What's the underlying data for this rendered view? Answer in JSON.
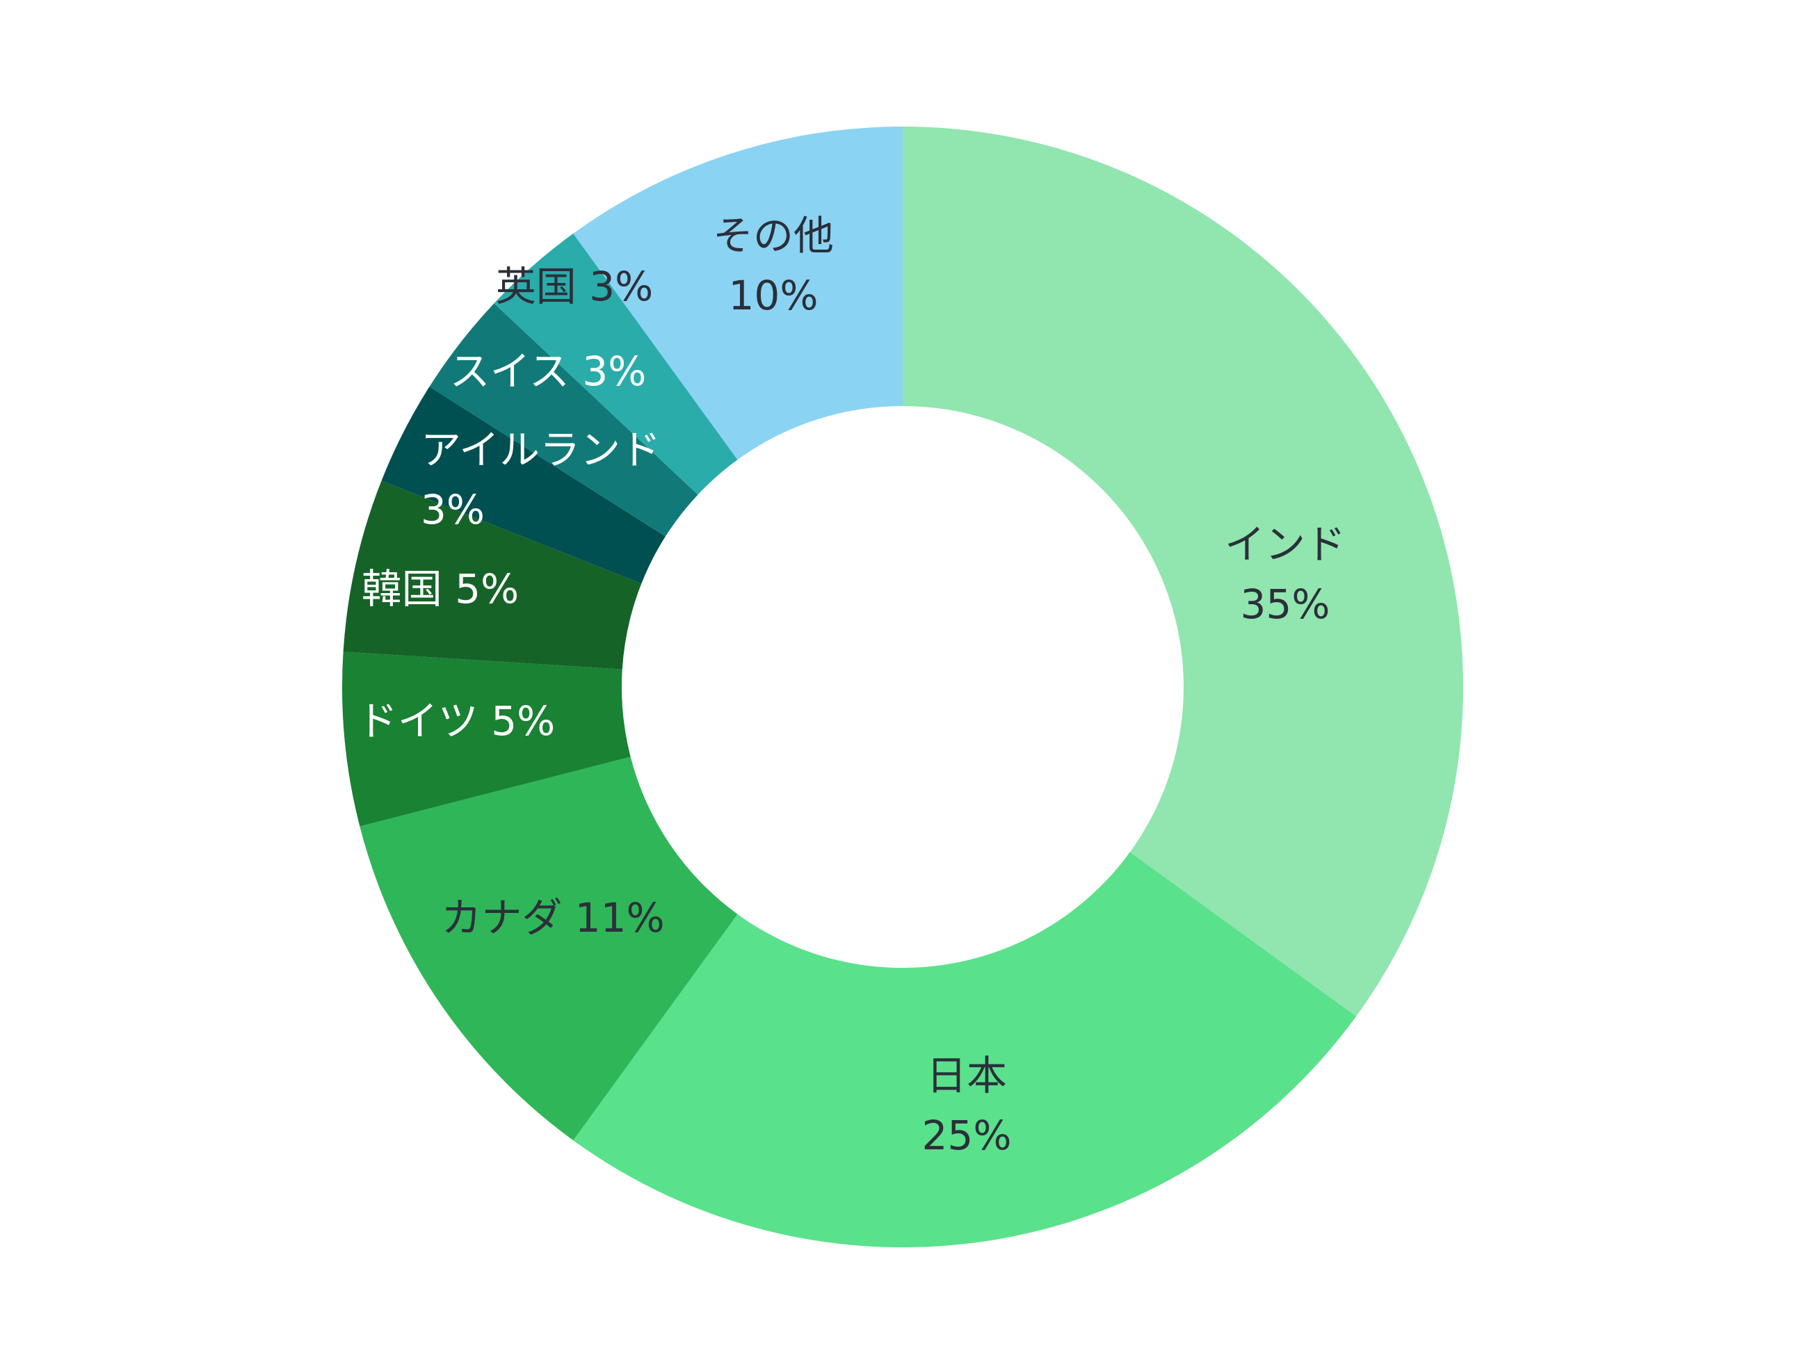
{
  "chart_data": {
    "type": "pie",
    "style": "donut",
    "start_angle_deg": 0,
    "direction": "clockwise",
    "slices": [
      {
        "name": "インド",
        "value": 35,
        "percent_label": "35%",
        "color": "#90e6ae",
        "label_color": "#2b2f3a"
      },
      {
        "name": "日本",
        "value": 25,
        "percent_label": "25%",
        "color": "#5ae18b",
        "label_color": "#2b2f3a"
      },
      {
        "name": "カナダ",
        "value": 11,
        "percent_label": "11%",
        "color": "#2fb658",
        "label_color": "#2b2f3a"
      },
      {
        "name": "ドイツ",
        "value": 5,
        "percent_label": "5%",
        "color": "#198233",
        "label_color": "#ffffff"
      },
      {
        "name": "韓国",
        "value": 5,
        "percent_label": "5%",
        "color": "#166328",
        "label_color": "#ffffff"
      },
      {
        "name": "アイルランド",
        "value": 3,
        "percent_label": "3%",
        "color": "#004f51",
        "label_color": "#ffffff"
      },
      {
        "name": "スイス",
        "value": 3,
        "percent_label": "3%",
        "color": "#117a78",
        "label_color": "#ffffff"
      },
      {
        "name": "英国",
        "value": 3,
        "percent_label": "3%",
        "color": "#2aacab",
        "label_color": "#2b2f3a"
      },
      {
        "name": "その他",
        "value": 10,
        "percent_label": "10%",
        "color": "#8ad3f2",
        "label_color": "#2b2f3a"
      }
    ]
  }
}
